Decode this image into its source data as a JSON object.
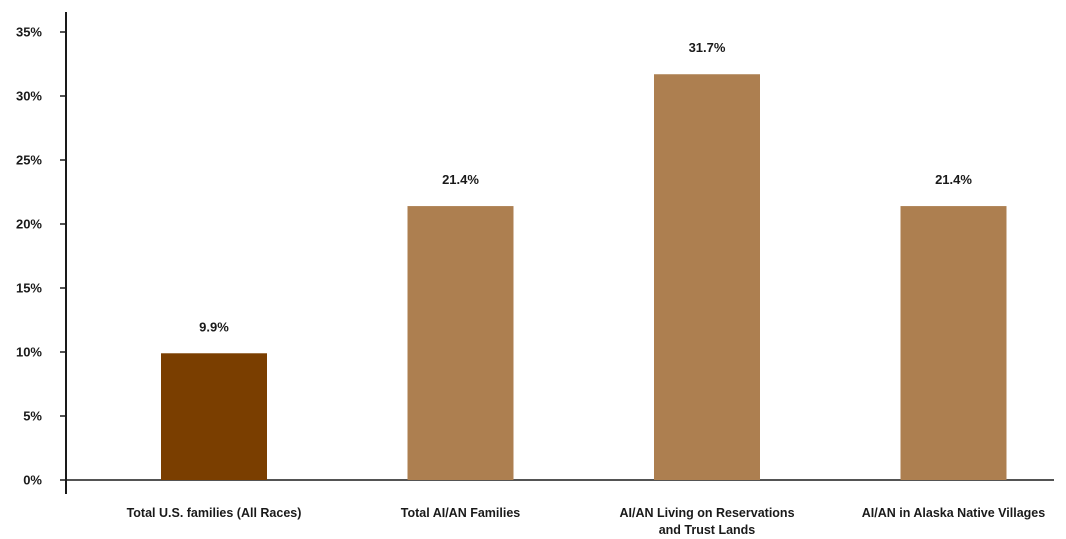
{
  "chart_data": {
    "type": "bar",
    "title": "",
    "xlabel": "",
    "ylabel": "",
    "ylim": [
      0,
      35
    ],
    "y_ticks": [
      0,
      5,
      10,
      15,
      20,
      25,
      30,
      35
    ],
    "y_tick_labels": [
      "0%",
      "5%",
      "10%",
      "15%",
      "20%",
      "25%",
      "30%",
      "35%"
    ],
    "grid": false,
    "legend": "none",
    "categories": [
      [
        "Total U.S. families (All Races)"
      ],
      [
        "Total AI/AN Families"
      ],
      [
        "AI/AN Living on Reservations",
        "and Trust Lands"
      ],
      [
        "AI/AN in Alaska Native Villages"
      ]
    ],
    "values": [
      9.9,
      21.4,
      31.7,
      21.4
    ],
    "value_labels": [
      "9.9%",
      "21.4%",
      "31.7%",
      "21.4%"
    ],
    "bar_colors": [
      "#7a3e00",
      "#ad7f50",
      "#ad7f50",
      "#ad7f50"
    ]
  }
}
